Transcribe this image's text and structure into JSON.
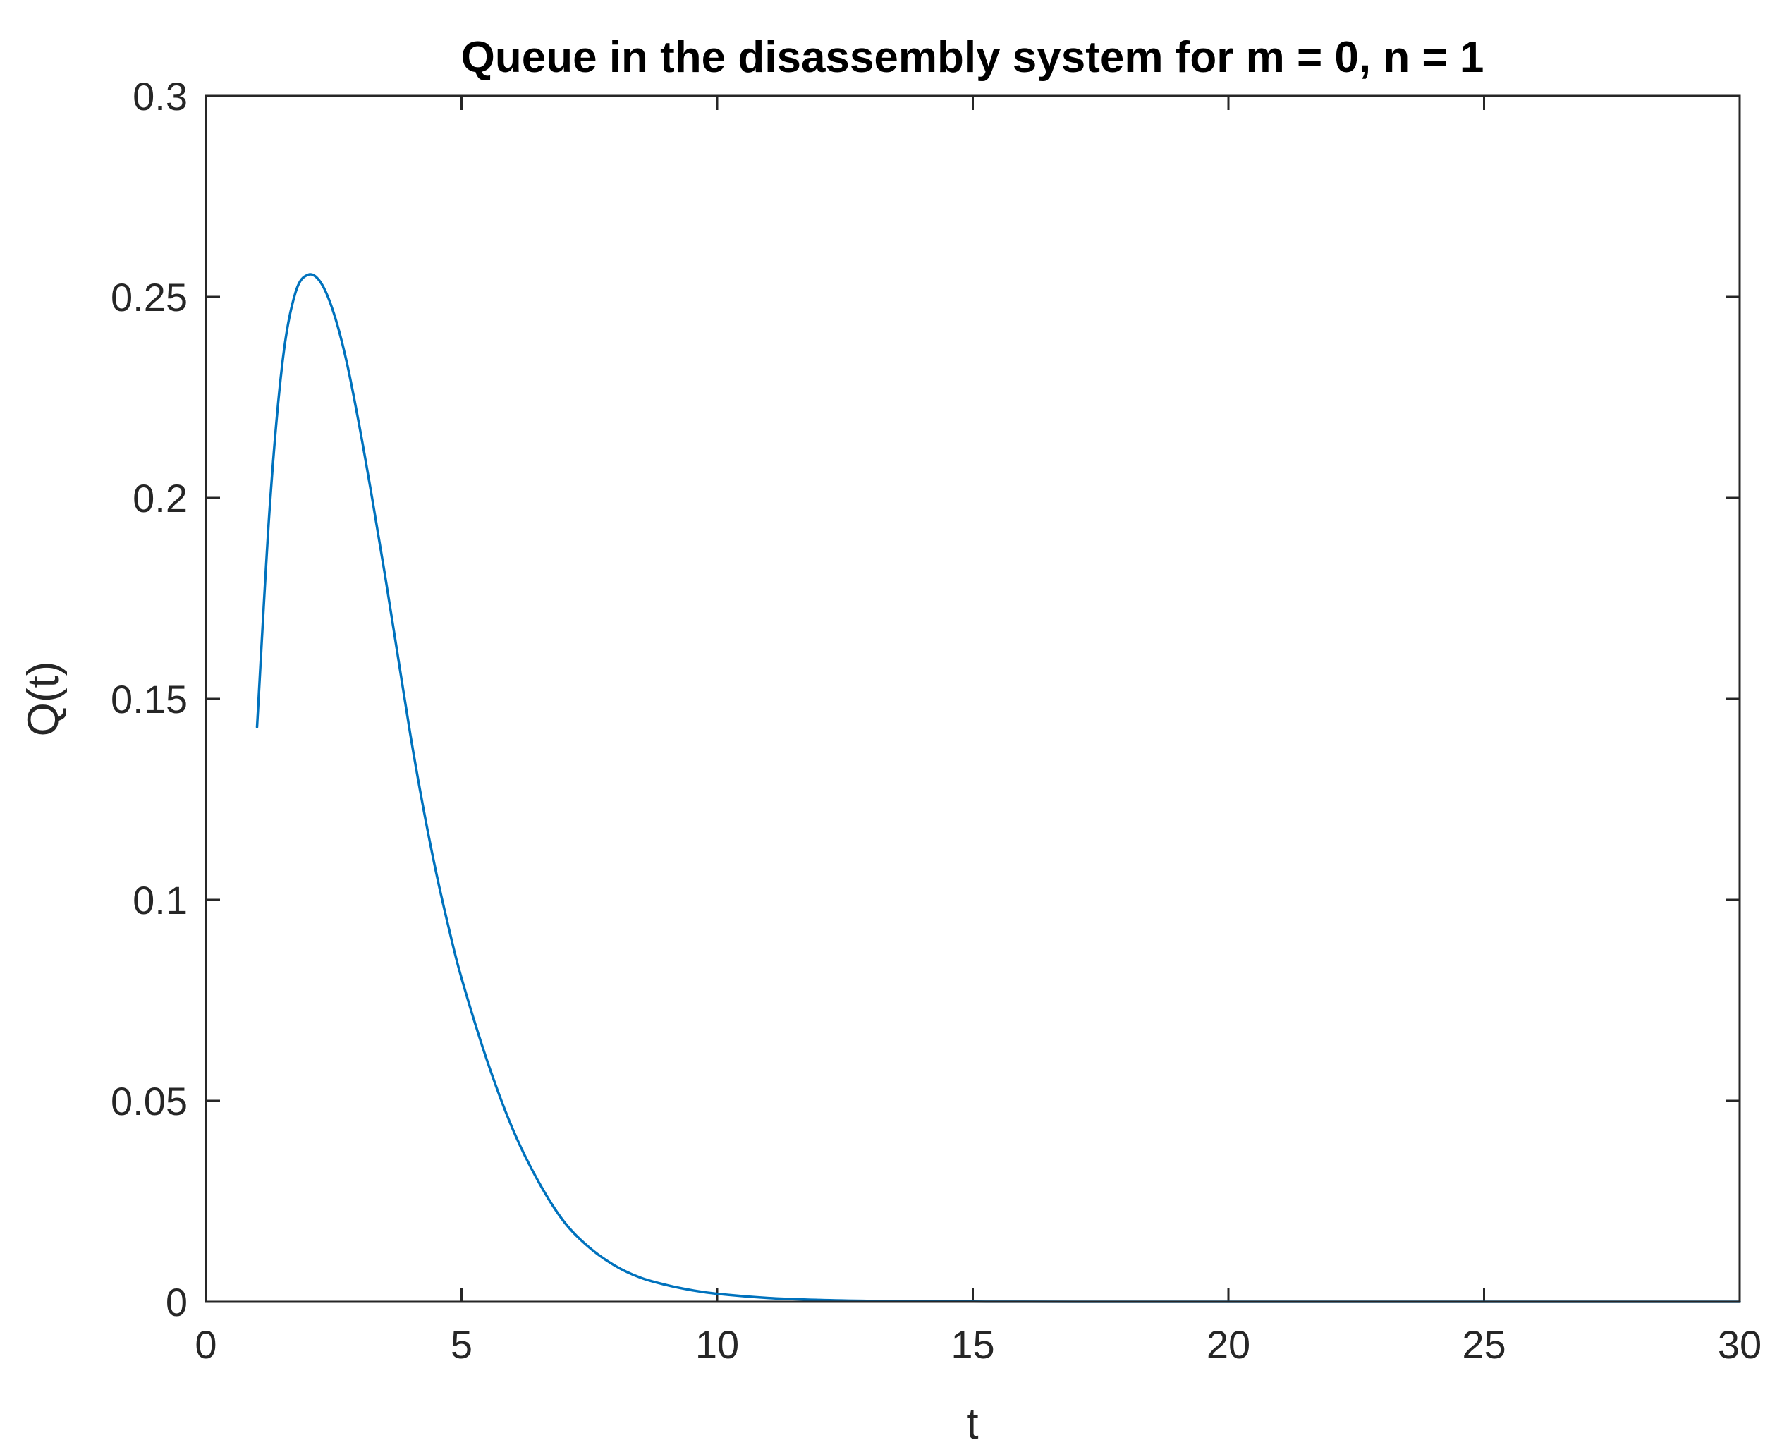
{
  "chart_data": {
    "type": "line",
    "title": "Queue in the disassembly system for m = 0, n = 1",
    "xlabel": "t",
    "ylabel": "Q(t)",
    "xlim": [
      0,
      30
    ],
    "ylim": [
      0,
      0.3
    ],
    "xticks": [
      0,
      5,
      10,
      15,
      20,
      25,
      30
    ],
    "xtick_labels": [
      "0",
      "5",
      "10",
      "15",
      "20",
      "25",
      "30"
    ],
    "yticks": [
      0,
      0.05,
      0.1,
      0.15,
      0.2,
      0.25,
      0.3
    ],
    "ytick_labels": [
      "0",
      "0.05",
      "0.1",
      "0.15",
      "0.2",
      "0.25",
      "0.3"
    ],
    "grid": false,
    "box": true,
    "line_color": "#0072BD",
    "axis_color": "#262626",
    "series": [
      {
        "x": [
          1,
          1.25,
          1.5,
          1.75,
          2,
          2.25,
          2.5,
          2.75,
          3,
          3.25,
          3.5,
          3.75,
          4,
          4.25,
          4.5,
          4.75,
          5,
          5.5,
          6,
          6.5,
          7,
          7.5,
          8,
          8.5,
          9,
          9.5,
          10,
          11,
          12,
          13,
          14,
          15,
          16,
          18,
          20,
          22,
          24,
          26,
          28,
          30
        ],
        "y": [
          0.143,
          0.198,
          0.234,
          0.251,
          0.2555,
          0.2535,
          0.246,
          0.234,
          0.218,
          0.2,
          0.181,
          0.161,
          0.141,
          0.123,
          0.107,
          0.093,
          0.0805,
          0.06,
          0.043,
          0.03,
          0.02,
          0.0135,
          0.009,
          0.006,
          0.0042,
          0.0029,
          0.002,
          0.00095,
          0.00045,
          0.0002,
          0.0001,
          4e-05,
          2e-05,
          0,
          0,
          0,
          0,
          0,
          0,
          0
        ]
      }
    ]
  }
}
